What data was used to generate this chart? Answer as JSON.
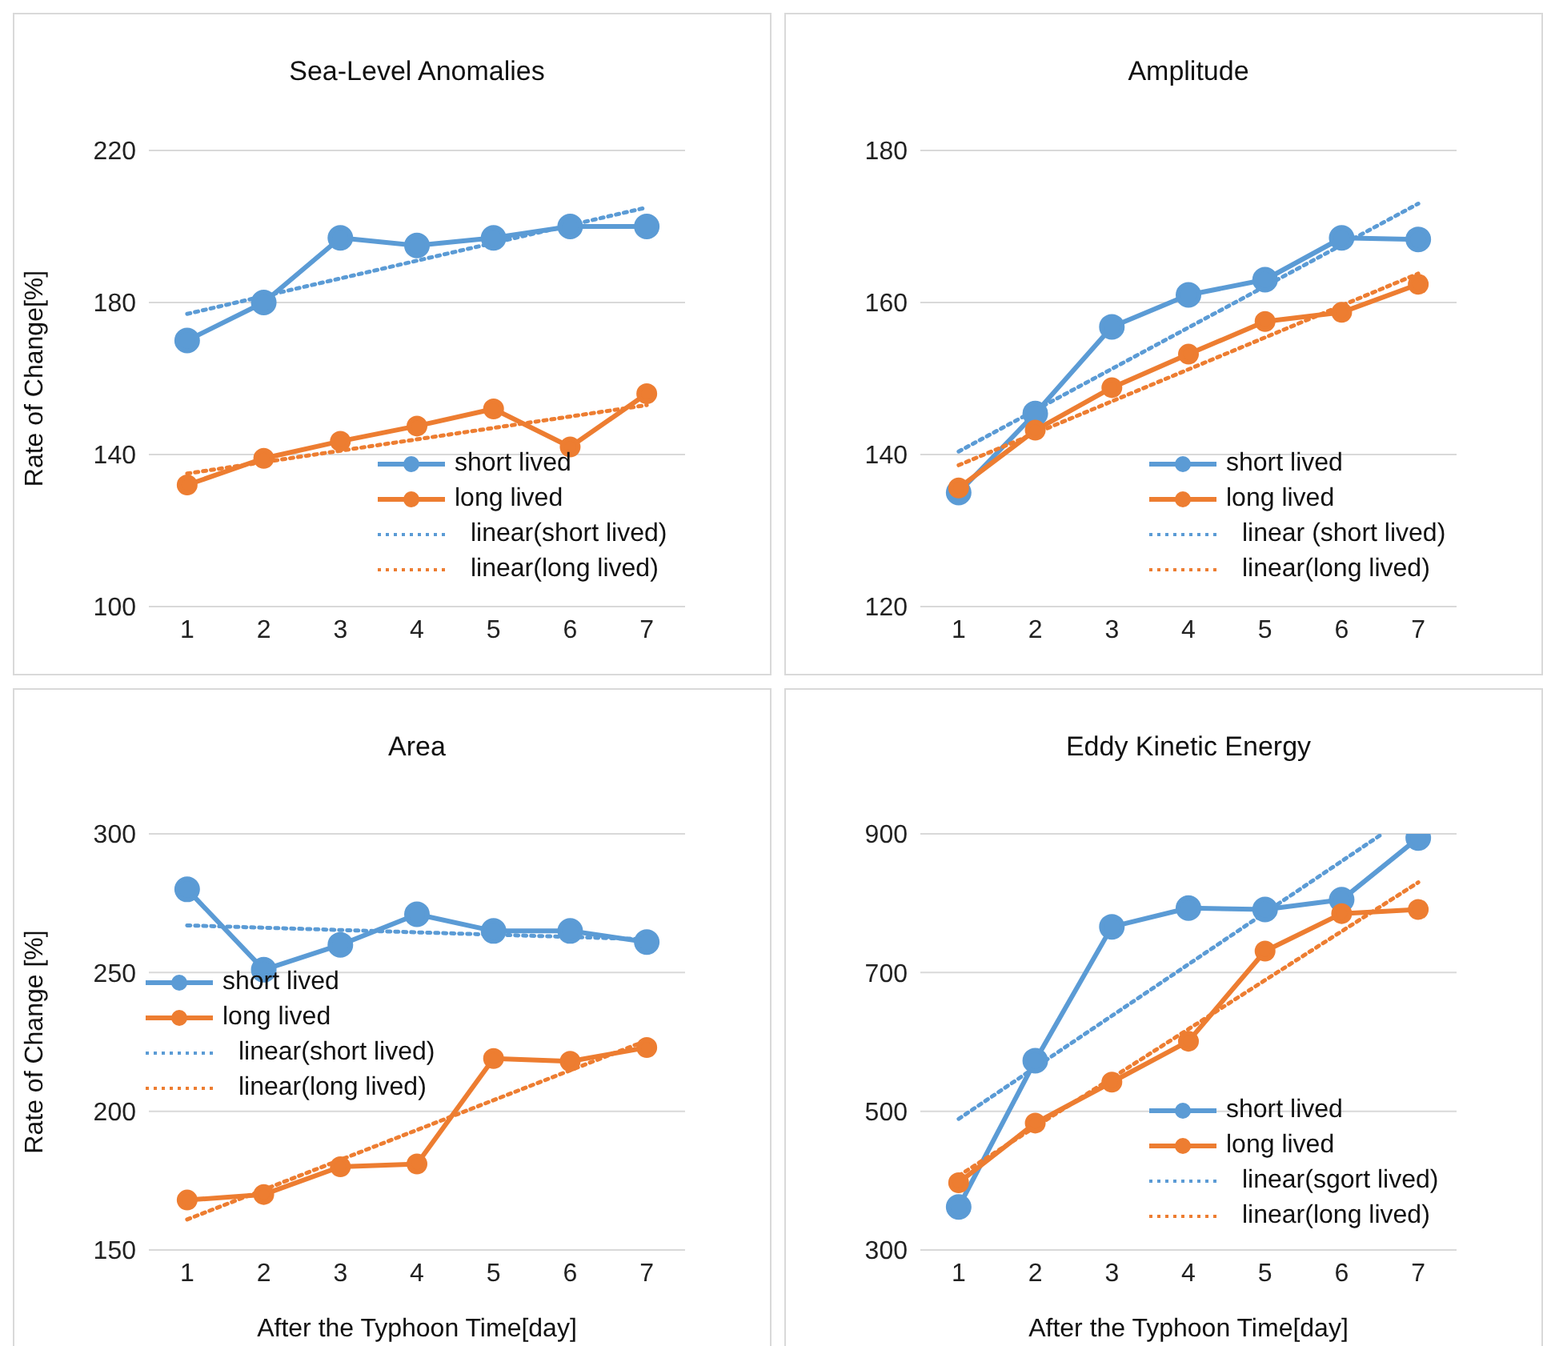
{
  "chart_data": [
    {
      "type": "line",
      "title": "Sea-Level Anomalies",
      "ylabel": "Rate of Change[%]",
      "x": [
        1,
        2,
        3,
        4,
        5,
        6,
        7
      ],
      "xlim": [
        0.5,
        7.5
      ],
      "xticks": [
        1,
        2,
        3,
        4,
        5,
        6,
        7
      ],
      "ylim": [
        100,
        220
      ],
      "yticks": [
        100,
        140,
        180,
        220
      ],
      "grid": "y",
      "legend": "bottom right",
      "marker": "circle",
      "line_style": "solid",
      "series": [
        {
          "name": "short lived",
          "color": "#5b9bd5",
          "values": [
            170,
            180,
            197,
            195,
            197,
            200,
            200
          ]
        },
        {
          "name": "long lived",
          "color": "#ed7d31",
          "values": [
            132,
            139,
            143.5,
            147.5,
            152,
            142,
            156
          ]
        },
        {
          "name": "linear(short lived)",
          "color": "#5b9bd5",
          "x": [
            1,
            7
          ],
          "values": [
            177,
            205
          ],
          "marker": "none",
          "line_style": "dotted"
        },
        {
          "name": "linear(long lived)",
          "color": "#ed7d31",
          "x": [
            1,
            7
          ],
          "values": [
            135,
            153
          ],
          "marker": "none",
          "line_style": "dotted"
        }
      ]
    },
    {
      "type": "line",
      "title": "Amplitude",
      "x": [
        1,
        2,
        3,
        4,
        5,
        6,
        7
      ],
      "xlim": [
        0.5,
        7.5
      ],
      "xticks": [
        1,
        2,
        3,
        4,
        5,
        6,
        7
      ],
      "ylim": [
        120,
        180
      ],
      "yticks": [
        120,
        140,
        160,
        180
      ],
      "grid": "y",
      "legend": "bottom right",
      "marker": "circle",
      "line_style": "solid",
      "series": [
        {
          "name": "short lived",
          "color": "#5b9bd5",
          "values": [
            135,
            145.4,
            156.8,
            161,
            163,
            168.5,
            168.3
          ]
        },
        {
          "name": "long lived",
          "color": "#ed7d31",
          "values": [
            135.6,
            143.2,
            148.8,
            153.2,
            157.5,
            158.7,
            162.4
          ]
        },
        {
          "name": "linear (short lived)",
          "color": "#5b9bd5",
          "x": [
            1,
            7
          ],
          "values": [
            140.4,
            173
          ],
          "marker": "none",
          "line_style": "dotted"
        },
        {
          "name": "linear(long lived)",
          "color": "#ed7d31",
          "x": [
            1,
            7
          ],
          "values": [
            138.6,
            163.8
          ],
          "marker": "none",
          "line_style": "dotted"
        }
      ]
    },
    {
      "type": "line",
      "title": "Area",
      "ylabel": "Rate of Change [%]",
      "xlabel": "After the Typhoon Time[day]",
      "x": [
        1,
        2,
        3,
        4,
        5,
        6,
        7
      ],
      "xlim": [
        0.5,
        7.5
      ],
      "xticks": [
        1,
        2,
        3,
        4,
        5,
        6,
        7
      ],
      "ylim": [
        150,
        300
      ],
      "yticks": [
        150,
        200,
        250,
        300
      ],
      "grid": "y",
      "legend": "left",
      "marker": "circle",
      "line_style": "solid",
      "series": [
        {
          "name": "short lived",
          "color": "#5b9bd5",
          "values": [
            280,
            251,
            260,
            271,
            265,
            265,
            261
          ]
        },
        {
          "name": "long lived",
          "color": "#ed7d31",
          "values": [
            168,
            170,
            180,
            181,
            219,
            218,
            223
          ]
        },
        {
          "name": "linear(short lived)",
          "color": "#5b9bd5",
          "x": [
            1,
            7
          ],
          "values": [
            267,
            262
          ],
          "marker": "none",
          "line_style": "dotted"
        },
        {
          "name": "linear(long lived)",
          "color": "#ed7d31",
          "x": [
            1,
            7
          ],
          "values": [
            161,
            225.5
          ],
          "marker": "none",
          "line_style": "dotted"
        }
      ]
    },
    {
      "type": "line",
      "title": "Eddy Kinetic Energy",
      "xlabel": "After the Typhoon Time[day]",
      "x": [
        1,
        2,
        3,
        4,
        5,
        6,
        7
      ],
      "xlim": [
        0.5,
        7.5
      ],
      "xticks": [
        1,
        2,
        3,
        4,
        5,
        6,
        7
      ],
      "ylim": [
        300,
        900
      ],
      "yticks": [
        300,
        500,
        700,
        900
      ],
      "grid": "y",
      "legend": "bottom right",
      "marker": "circle",
      "line_style": "solid",
      "series": [
        {
          "name": "short lived",
          "color": "#5b9bd5",
          "values": [
            362,
            573,
            766,
            793,
            791,
            805,
            894
          ]
        },
        {
          "name": "long lived",
          "color": "#ed7d31",
          "values": [
            397,
            483,
            542,
            601,
            731,
            785,
            791
          ]
        },
        {
          "name": "linear(sgort lived)",
          "color": "#5b9bd5",
          "x": [
            1,
            6.53
          ],
          "values": [
            489,
            900
          ],
          "marker": "none",
          "line_style": "dotted"
        },
        {
          "name": "linear(long lived)",
          "color": "#ed7d31",
          "x": [
            1,
            7
          ],
          "values": [
            407,
            830
          ],
          "marker": "none",
          "line_style": "dotted"
        }
      ]
    }
  ]
}
